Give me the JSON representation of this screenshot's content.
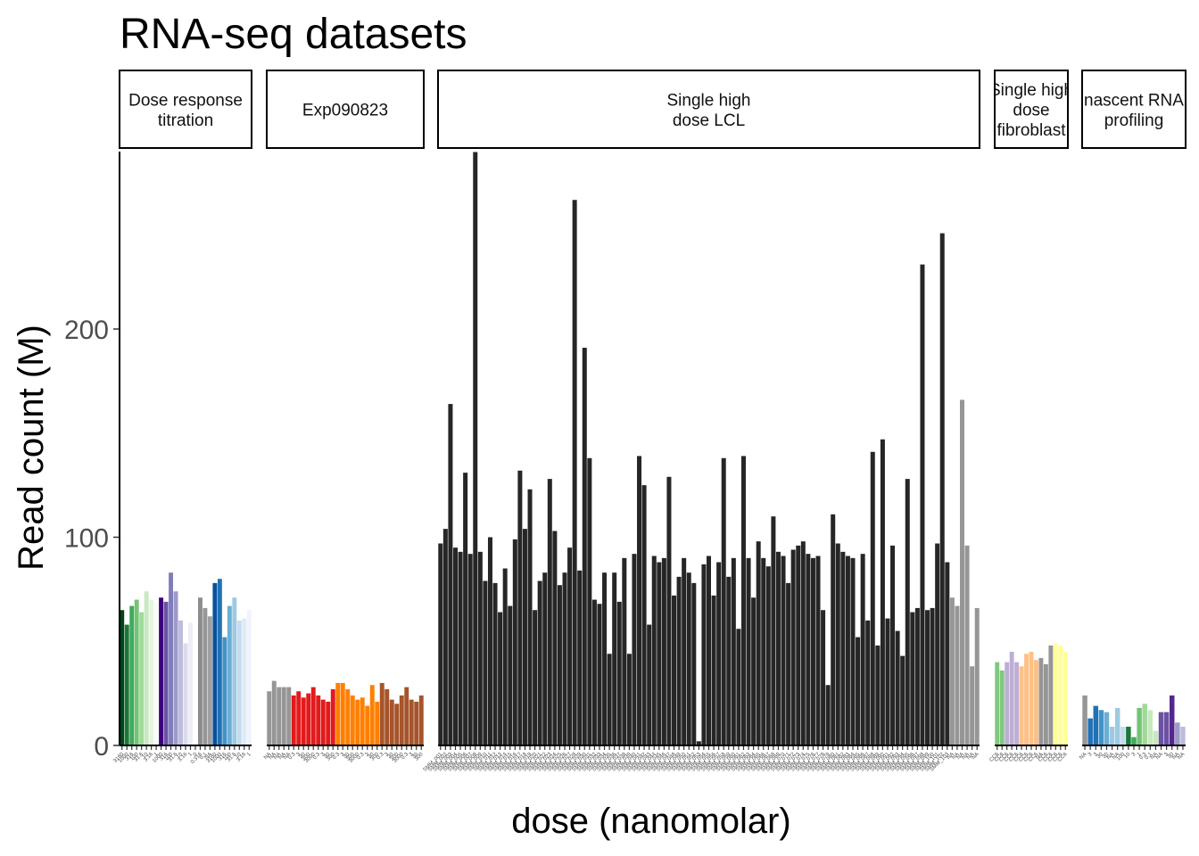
{
  "chart_data": {
    "type": "bar",
    "title": "RNA-seq datasets",
    "xlabel": "dose (nanomolar)",
    "ylabel": "Read count (M)",
    "ylim": [
      0,
      285
    ],
    "yticks": [
      0,
      100,
      200
    ],
    "grid": false,
    "legend": "none",
    "facets": [
      {
        "label": [
          "Dose response",
          "titration"
        ],
        "bars": [
          {
            "x": "3160",
            "y": 65,
            "color": "#00441b"
          },
          {
            "x": "1000",
            "y": 58,
            "color": "#1b7837"
          },
          {
            "x": "316",
            "y": 67,
            "color": "#41ab5d"
          },
          {
            "x": "100",
            "y": 70,
            "color": "#74c476"
          },
          {
            "x": "31.6",
            "y": 64,
            "color": "#a1d99b"
          },
          {
            "x": "10",
            "y": 74,
            "color": "#c7e9c0"
          },
          {
            "x": "3.16",
            "y": 70,
            "color": "#e5f5e0"
          },
          {
            "x": "1",
            "y": 69,
            "color": "#f7fcf5"
          },
          {
            "x": "1000",
            "y": 71,
            "color": "#3f007d"
          },
          {
            "x": "316",
            "y": 69,
            "color": "#6a51a3"
          },
          {
            "x": "100",
            "y": 83,
            "color": "#807dba"
          },
          {
            "x": "31.6",
            "y": 74,
            "color": "#9e9ac8"
          },
          {
            "x": "10",
            "y": 60,
            "color": "#bcbddc"
          },
          {
            "x": "3.16",
            "y": 49,
            "color": "#dadaeb"
          },
          {
            "x": "1",
            "y": 59,
            "color": "#efedf5"
          },
          {
            "x": "0",
            "y": 58,
            "color": "#ffffff"
          },
          {
            "x": "0.316",
            "y": 71,
            "color": "#8c8c8c"
          },
          {
            "x": "0.1",
            "y": 66,
            "color": "#969696"
          },
          {
            "x": "NA",
            "y": 62,
            "color": "#a0a0a0"
          },
          {
            "x": "3160",
            "y": 78,
            "color": "#08519c"
          },
          {
            "x": "1000",
            "y": 80,
            "color": "#2171b5"
          },
          {
            "x": "316",
            "y": 52,
            "color": "#4292c6"
          },
          {
            "x": "100",
            "y": 67,
            "color": "#6baed6"
          },
          {
            "x": "31.6",
            "y": 71,
            "color": "#9ecae1"
          },
          {
            "x": "10",
            "y": 60,
            "color": "#c6dbef"
          },
          {
            "x": "3.16",
            "y": 61,
            "color": "#deebf7"
          },
          {
            "x": "1",
            "y": 65,
            "color": "#eff3ff"
          }
        ]
      },
      {
        "label": [
          "Exp090823"
        ],
        "bars": [
          {
            "x": "NA",
            "y": 26,
            "color": "#969696"
          },
          {
            "x": "NA",
            "y": 31,
            "color": "#969696"
          },
          {
            "x": "NA",
            "y": 28,
            "color": "#969696"
          },
          {
            "x": "NA",
            "y": 28,
            "color": "#969696"
          },
          {
            "x": "NA",
            "y": 28,
            "color": "#969696"
          },
          {
            "x": "0.3",
            "y": 24,
            "color": "#e31a1c"
          },
          {
            "x": "3",
            "y": 26,
            "color": "#e31a1c"
          },
          {
            "x": "30",
            "y": 23,
            "color": "#e31a1c"
          },
          {
            "x": "300",
            "y": 25,
            "color": "#e31a1c"
          },
          {
            "x": "3000",
            "y": 28,
            "color": "#e31a1c"
          },
          {
            "x": "0.3",
            "y": 24,
            "color": "#e31a1c"
          },
          {
            "x": "3",
            "y": 22,
            "color": "#e31a1c"
          },
          {
            "x": "30",
            "y": 21,
            "color": "#e31a1c"
          },
          {
            "x": "300",
            "y": 27,
            "color": "#e31a1c"
          },
          {
            "x": "0.3",
            "y": 30,
            "color": "#ff7f00"
          },
          {
            "x": "3",
            "y": 30,
            "color": "#ff7f00"
          },
          {
            "x": "30",
            "y": 27,
            "color": "#ff7f00"
          },
          {
            "x": "300",
            "y": 24,
            "color": "#ff7f00"
          },
          {
            "x": "3000",
            "y": 22,
            "color": "#ff7f00"
          },
          {
            "x": "0.3",
            "y": 23,
            "color": "#ff7f00"
          },
          {
            "x": "3",
            "y": 19,
            "color": "#ff7f00"
          },
          {
            "x": "30",
            "y": 29,
            "color": "#ff7f00"
          },
          {
            "x": "300",
            "y": 21,
            "color": "#ff7f00"
          },
          {
            "x": "0.3",
            "y": 30,
            "color": "#a6542a"
          },
          {
            "x": "3",
            "y": 27,
            "color": "#a6542a"
          },
          {
            "x": "30",
            "y": 22,
            "color": "#a6542a"
          },
          {
            "x": "300",
            "y": 20,
            "color": "#a6542a"
          },
          {
            "x": "3000",
            "y": 24,
            "color": "#a6542a"
          },
          {
            "x": "0.3",
            "y": 28,
            "color": "#a6542a"
          },
          {
            "x": "3",
            "y": 22,
            "color": "#a6542a"
          },
          {
            "x": "30",
            "y": 21,
            "color": "#a6542a"
          },
          {
            "x": "300",
            "y": 24,
            "color": "#a6542a"
          }
        ]
      },
      {
        "label": [
          "Single high",
          "dose LCL"
        ],
        "default_color": "#262626",
        "x_label_prefix": "SMM_",
        "values": [
          97,
          104,
          164,
          95,
          93,
          131,
          92,
          285,
          93,
          79,
          100,
          78,
          64,
          85,
          67,
          99,
          132,
          104,
          123,
          65,
          79,
          83,
          128,
          103,
          77,
          83,
          95,
          262,
          84,
          191,
          138,
          70,
          68,
          83,
          44,
          83,
          69,
          90,
          44,
          92,
          139,
          125,
          58,
          91,
          88,
          90,
          129,
          72,
          81,
          90,
          83,
          78,
          2,
          87,
          91,
          72,
          88,
          138,
          81,
          90,
          56,
          139,
          90,
          71,
          98,
          90,
          86,
          110,
          93,
          91,
          78,
          94,
          96,
          98,
          92,
          90,
          91,
          65,
          29,
          111,
          97,
          93,
          91,
          90,
          52,
          92,
          60,
          141,
          48,
          147,
          61,
          96,
          55,
          43,
          128,
          64,
          66,
          231,
          65,
          66,
          97,
          246,
          88
        ],
        "extra_bars": [
          {
            "x": "NA",
            "y": 71,
            "color": "#969696"
          },
          {
            "x": "NA",
            "y": 67,
            "color": "#969696"
          },
          {
            "x": "NA",
            "y": 166,
            "color": "#969696"
          },
          {
            "x": "NA",
            "y": 96,
            "color": "#969696"
          },
          {
            "x": "NA",
            "y": 38,
            "color": "#969696"
          },
          {
            "x": "NA",
            "y": 66,
            "color": "#969696"
          }
        ]
      },
      {
        "label": [
          "Single high",
          "dose",
          "fibroblast"
        ],
        "bars": [
          {
            "x": "CC6",
            "y": 40,
            "color": "#7fc97f"
          },
          {
            "x": "CC6",
            "y": 36,
            "color": "#7fc97f"
          },
          {
            "x": "CC6",
            "y": 40,
            "color": "#beaed4"
          },
          {
            "x": "CC6",
            "y": 45,
            "color": "#beaed4"
          },
          {
            "x": "CC6",
            "y": 40,
            "color": "#beaed4"
          },
          {
            "x": "CC6",
            "y": 38,
            "color": "#fdc086"
          },
          {
            "x": "CC6",
            "y": 44,
            "color": "#fdc086"
          },
          {
            "x": "CC6",
            "y": 45,
            "color": "#fdc086"
          },
          {
            "x": "CC6",
            "y": 41,
            "color": "#fdc086"
          },
          {
            "x": "NA",
            "y": 42,
            "color": "#969696"
          },
          {
            "x": "CC6",
            "y": 39,
            "color": "#969696"
          },
          {
            "x": "CC6",
            "y": 48,
            "color": "#969696"
          },
          {
            "x": "CC6",
            "y": 49,
            "color": "#ffff99"
          },
          {
            "x": "CC6",
            "y": 48,
            "color": "#ffff99"
          },
          {
            "x": "CC6",
            "y": 45,
            "color": "#ffff99"
          }
        ]
      },
      {
        "label": [
          "nascent RNA",
          "profiling"
        ],
        "bars": [
          {
            "x": "NA",
            "y": 24,
            "color": "#969696"
          },
          {
            "x": "3",
            "y": 13,
            "color": "#2171b5"
          },
          {
            "x": "3",
            "y": 19,
            "color": "#2171b5"
          },
          {
            "x": "30",
            "y": 17,
            "color": "#4292c6"
          },
          {
            "x": "30",
            "y": 16,
            "color": "#6baed6"
          },
          {
            "x": "NA",
            "y": 9,
            "color": "#9ecae1"
          },
          {
            "x": "NA",
            "y": 18,
            "color": "#9ecae1"
          },
          {
            "x": "100",
            "y": 9,
            "color": "#c6dbef"
          },
          {
            "x": "10",
            "y": 9,
            "color": "#1b7837"
          },
          {
            "x": "3",
            "y": 4,
            "color": "#41ab5d"
          },
          {
            "x": "1",
            "y": 18,
            "color": "#74c476"
          },
          {
            "x": "0.3",
            "y": 20,
            "color": "#a1d99b"
          },
          {
            "x": "0.1",
            "y": 17,
            "color": "#c7e9c0"
          },
          {
            "x": "NA",
            "y": 7,
            "color": "#c7e9c0"
          },
          {
            "x": "NA",
            "y": 16,
            "color": "#6a51a3"
          },
          {
            "x": "3",
            "y": 16,
            "color": "#6a51a3"
          },
          {
            "x": "30",
            "y": 24,
            "color": "#54278f"
          },
          {
            "x": "NA",
            "y": 11,
            "color": "#9e9ac8"
          },
          {
            "x": "NA",
            "y": 9,
            "color": "#bcbddc"
          }
        ]
      }
    ]
  }
}
